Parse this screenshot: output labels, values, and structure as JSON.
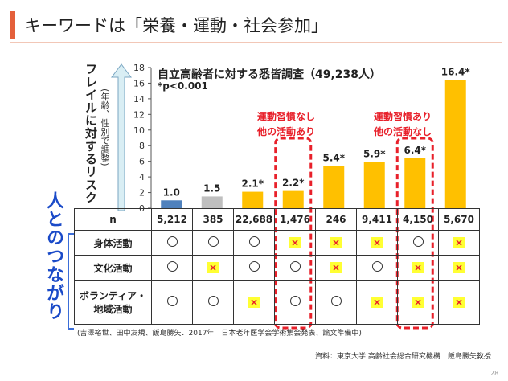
{
  "slide": {
    "title": "キーワードは「栄養・運動・社会参加」",
    "side_label": "人とのつながり",
    "citation": "(吉澤裕世、田中友規、飯島勝矢．2017年　日本老年医学会学術集会発表、論文準備中)",
    "source": "資料：東京大学 高齢社会総合研究機構　飯島勝矢教授",
    "page_number": "28",
    "annotation_left": [
      "運動習慣なし",
      "他の活動あり"
    ],
    "annotation_right": [
      "運動習慣あり",
      "他の活動なし"
    ]
  },
  "colors": {
    "accent": "#e4603b",
    "bar_blue": "#4f81bd",
    "bar_gray": "#bfbfbf",
    "bar_orange": "#ffc000",
    "highlight_red": "#e8202a",
    "cross_bg": "#ffff33",
    "side_label_blue": "#1a4ac8",
    "arrow_fill": "#d9eef4"
  },
  "chart_data": {
    "type": "bar",
    "title": "自立高齢者に対する悉皆調査（49,238人）",
    "subtitle": "*p<0.001",
    "ylabel": "フレイルに対するリスク",
    "ylabel_note": "(年齢、性別で調整)",
    "ylim": [
      0,
      18
    ],
    "yticks": [
      0,
      2,
      4,
      6,
      8,
      10,
      12,
      14,
      16,
      18
    ],
    "values": [
      1.0,
      1.5,
      2.1,
      2.2,
      5.4,
      5.9,
      6.4,
      16.4
    ],
    "labels": [
      "1.0",
      "1.5",
      "2.1*",
      "2.2*",
      "5.4*",
      "5.9*",
      "6.4*",
      "16.4*"
    ],
    "bar_colors": [
      "#4f81bd",
      "#bfbfbf",
      "#ffc000",
      "#ffc000",
      "#ffc000",
      "#ffc000",
      "#ffc000",
      "#ffc000"
    ],
    "grid": false
  },
  "table": {
    "n_label": "n",
    "n_values": [
      "5,212",
      "385",
      "22,688",
      "1,476",
      "246",
      "9,411",
      "4,150",
      "5,670"
    ],
    "rows": [
      {
        "label": "身体活動",
        "cells": [
          "o",
          "o",
          "o",
          "x",
          "x",
          "x",
          "o",
          "x"
        ]
      },
      {
        "label": "文化活動",
        "cells": [
          "o",
          "x",
          "o",
          "o",
          "x",
          "o",
          "x",
          "x"
        ]
      },
      {
        "label": "ボランティア・\n地域活動",
        "cells": [
          "o",
          "o",
          "x",
          "o",
          "o",
          "x",
          "x",
          "x"
        ]
      }
    ],
    "cross_glyph": "×"
  }
}
